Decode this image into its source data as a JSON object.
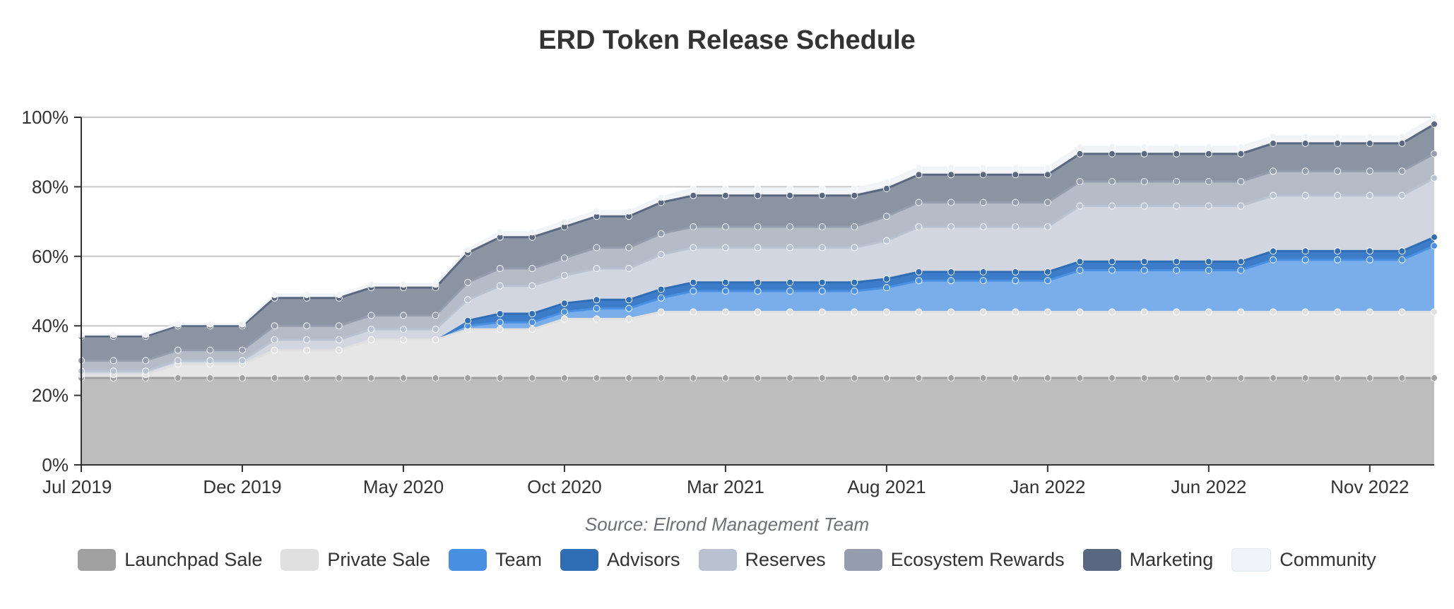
{
  "chart_data": {
    "type": "area",
    "stacked": true,
    "title": "ERD Token Release Schedule",
    "source": "Source: Elrond Management Team",
    "x_ticks": [
      "Jul 2019",
      "Dec 2019",
      "May 2020",
      "Oct 2020",
      "Mar 2021",
      "Aug 2021",
      "Jan 2022",
      "Jun 2022",
      "Nov 2022"
    ],
    "y_ticks": [
      "0%",
      "20%",
      "40%",
      "60%",
      "80%",
      "100%"
    ],
    "ylim": [
      0,
      100
    ],
    "x_start": "2019-07",
    "x_end": "2023-01",
    "grid": true,
    "legend_position": "bottom",
    "series": [
      {
        "name": "Launchpad Sale",
        "color": "#a0a0a0",
        "fill": "#bdbdbd",
        "values": [
          25,
          25,
          25,
          25,
          25,
          25,
          25,
          25,
          25,
          25,
          25,
          25,
          25,
          25,
          25,
          25,
          25,
          25,
          25,
          25,
          25,
          25,
          25,
          25,
          25,
          25,
          25,
          25,
          25,
          25,
          25,
          25,
          25,
          25,
          25,
          25,
          25,
          25,
          25,
          25,
          25,
          25,
          25
        ]
      },
      {
        "name": "Private Sale",
        "color": "#e0e0e0",
        "fill": "#e6e6e6",
        "values": [
          1,
          1,
          1,
          4,
          4,
          4,
          8,
          8,
          8,
          11,
          11,
          11,
          14,
          14,
          14,
          17,
          17,
          17,
          19,
          19,
          19,
          19,
          19,
          19,
          19,
          19,
          19,
          19,
          19,
          19,
          19,
          19,
          19,
          19,
          19,
          19,
          19,
          19,
          19,
          19,
          19,
          19,
          19
        ]
      },
      {
        "name": "Team",
        "color": "#4a90e2",
        "fill": "#7aaeeb",
        "values": [
          0,
          0,
          0,
          0,
          0,
          0,
          0,
          0,
          0,
          0,
          0,
          0,
          1,
          2,
          2,
          2,
          3,
          3,
          4,
          6,
          6,
          6,
          6,
          6,
          6,
          7,
          9,
          9,
          9,
          9,
          9,
          12,
          12,
          12,
          12,
          12,
          12,
          15,
          15,
          15,
          15,
          15,
          19
        ]
      },
      {
        "name": "Advisors",
        "color": "#2f6db5",
        "fill": "#3d7cc9",
        "values": [
          0,
          0,
          0,
          0,
          0,
          0,
          0,
          0,
          0,
          0,
          0,
          0,
          1.5,
          2.5,
          2.5,
          2.5,
          2.5,
          2.5,
          2.5,
          2.5,
          2.5,
          2.5,
          2.5,
          2.5,
          2.5,
          2.5,
          2.5,
          2.5,
          2.5,
          2.5,
          2.5,
          2.5,
          2.5,
          2.5,
          2.5,
          2.5,
          2.5,
          2.5,
          2.5,
          2.5,
          2.5,
          2.5,
          2.5
        ]
      },
      {
        "name": "Reserves",
        "color": "#b8c2d0",
        "fill": "#d1d6e0",
        "values": [
          1,
          1,
          1,
          1,
          1,
          1,
          3,
          3,
          3,
          3,
          3,
          3,
          6,
          8,
          8,
          8,
          9,
          9,
          10,
          10,
          10,
          10,
          10,
          10,
          10,
          11,
          13,
          13,
          13,
          13,
          13,
          16,
          16,
          16,
          16,
          16,
          16,
          16,
          16,
          16,
          16,
          16,
          17
        ]
      },
      {
        "name": "Ecosystem Rewards",
        "color": "#949dad",
        "fill": "#b5bbc7",
        "values": [
          3,
          3,
          3,
          3,
          3,
          3,
          4,
          4,
          4,
          4,
          4,
          4,
          5,
          5,
          5,
          5,
          6,
          6,
          6,
          6,
          6,
          6,
          6,
          6,
          6,
          7,
          7,
          7,
          7,
          7,
          7,
          7,
          7,
          7,
          7,
          7,
          7,
          7,
          7,
          7,
          7,
          7,
          7
        ]
      },
      {
        "name": "Marketing",
        "color": "#5a6781",
        "fill": "#8a94a3",
        "values": [
          7,
          7,
          7,
          7,
          7,
          7,
          8,
          8,
          8,
          8,
          8,
          8,
          8.5,
          9,
          9,
          9,
          9,
          9,
          9,
          9,
          9,
          9,
          9,
          9,
          9,
          8,
          8,
          8,
          8,
          8,
          8,
          8,
          8,
          8,
          8,
          8,
          8,
          8,
          8,
          8,
          8,
          8,
          8.5
        ]
      },
      {
        "name": "Community",
        "color": "#f0f4f8",
        "fill": "#f2f4f7",
        "values": [
          0.5,
          0.5,
          0.5,
          0.5,
          0.5,
          0.5,
          1,
          1,
          1,
          1,
          1,
          1,
          1,
          1.5,
          1.5,
          1.5,
          1.5,
          1.5,
          1.5,
          2,
          2,
          2,
          2,
          2,
          2,
          2,
          2,
          2,
          2,
          2,
          2,
          2,
          2,
          2,
          2,
          2,
          2,
          2,
          2,
          2,
          2,
          2,
          2
        ]
      }
    ]
  }
}
